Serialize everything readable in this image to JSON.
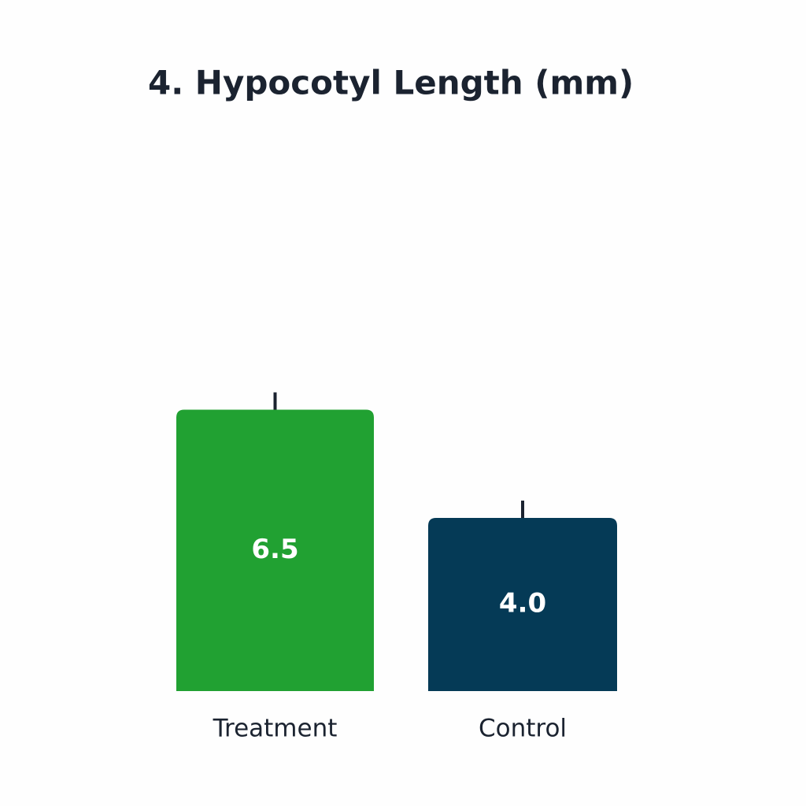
{
  "chart_data": {
    "type": "bar",
    "title": "4. Hypocotyl Length (mm)",
    "categories": [
      "Treatment",
      "Control"
    ],
    "values": [
      6.5,
      4.0
    ],
    "value_labels": [
      "6.5",
      "4.0"
    ],
    "errors": [
      0.4,
      0.4
    ],
    "colors": [
      "#21a132",
      "#053a56"
    ]
  }
}
